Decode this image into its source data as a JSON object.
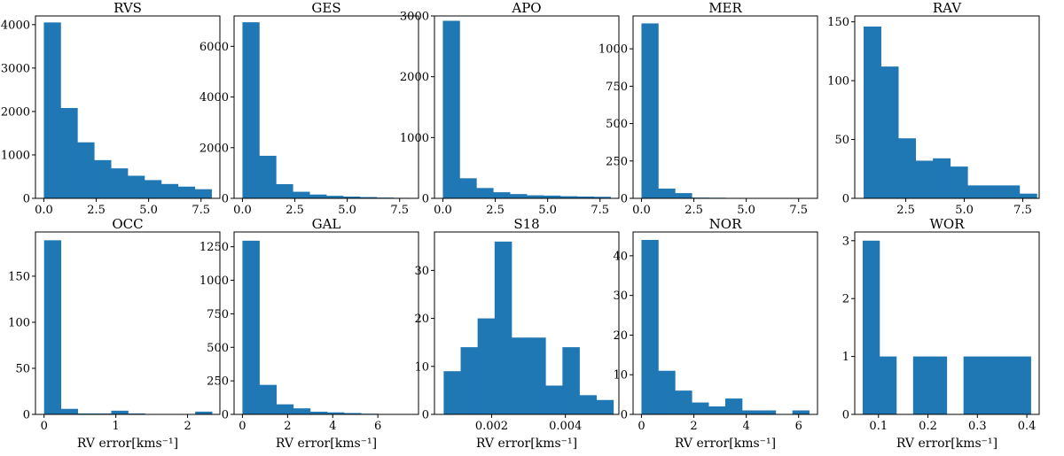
{
  "colors": {
    "bar": "#1f77b4"
  },
  "chart_data": [
    {
      "type": "bar",
      "title": "RVS",
      "xlim": [
        -0.4,
        8.4
      ],
      "ylim": [
        0,
        4200
      ],
      "xticks": [
        0,
        2.5,
        5,
        7.5
      ],
      "xtick_labels": [
        "0.0",
        "2.5",
        "5.0",
        "7.5"
      ],
      "yticks": [
        0,
        1000,
        2000,
        3000,
        4000
      ],
      "ytick_labels": [
        "0",
        "1000",
        "2000",
        "3000",
        "4000"
      ],
      "bin_edges": [
        0,
        0.8,
        1.6,
        2.4,
        3.2,
        4.0,
        4.8,
        5.6,
        6.4,
        7.2,
        8.0
      ],
      "values": [
        4050,
        2080,
        1290,
        880,
        690,
        520,
        420,
        330,
        270,
        210
      ],
      "xlabel": ""
    },
    {
      "type": "bar",
      "title": "GES",
      "xlim": [
        -0.4,
        8.4
      ],
      "ylim": [
        0,
        7200
      ],
      "xticks": [
        0,
        2.5,
        5,
        7.5
      ],
      "xtick_labels": [
        "0.0",
        "2.5",
        "5.0",
        "7.5"
      ],
      "yticks": [
        0,
        2000,
        4000,
        6000
      ],
      "ytick_labels": [
        "0",
        "2000",
        "4000",
        "6000"
      ],
      "bin_edges": [
        0,
        0.8,
        1.6,
        2.4,
        3.2,
        4.0,
        4.8,
        5.6,
        6.4,
        7.2,
        8.0
      ],
      "values": [
        6950,
        1680,
        560,
        260,
        150,
        100,
        70,
        50,
        30,
        20
      ],
      "xlabel": ""
    },
    {
      "type": "bar",
      "title": "APO",
      "xlim": [
        -0.4,
        8.4
      ],
      "ylim": [
        0,
        3000
      ],
      "xticks": [
        0,
        2.5,
        5,
        7.5
      ],
      "xtick_labels": [
        "0.0",
        "2.5",
        "5.0",
        "7.5"
      ],
      "yticks": [
        0,
        1000,
        2000,
        3000
      ],
      "ytick_labels": [
        "0",
        "1000",
        "2000",
        "3000"
      ],
      "bin_edges": [
        0,
        0.8,
        1.6,
        2.4,
        3.2,
        4.0,
        4.8,
        5.6,
        6.4,
        7.2,
        8.0
      ],
      "values": [
        2920,
        330,
        170,
        100,
        70,
        50,
        45,
        35,
        30,
        25
      ],
      "xlabel": ""
    },
    {
      "type": "bar",
      "title": "MER",
      "xlim": [
        -0.4,
        8.4
      ],
      "ylim": [
        0,
        1220
      ],
      "xticks": [
        0,
        2.5,
        5,
        7.5
      ],
      "xtick_labels": [
        "0.0",
        "2.5",
        "5.0",
        "7.5"
      ],
      "yticks": [
        0,
        250,
        500,
        750,
        1000
      ],
      "ytick_labels": [
        "0",
        "250",
        "500",
        "750",
        "1000"
      ],
      "bin_edges": [
        0,
        0.8,
        1.6,
        2.4,
        3.2,
        4.0,
        4.8,
        5.6,
        6.4,
        7.2,
        8.0
      ],
      "values": [
        1170,
        65,
        35,
        5,
        4,
        3,
        2,
        2,
        1,
        2
      ],
      "xlabel": ""
    },
    {
      "type": "bar",
      "title": "RAV",
      "xlim": [
        0.32,
        8.2
      ],
      "ylim": [
        0,
        155
      ],
      "xticks": [
        2.5,
        5,
        7.5
      ],
      "xtick_labels": [
        "2.5",
        "5.0",
        "7.5"
      ],
      "yticks": [
        0,
        50,
        100,
        150
      ],
      "ytick_labels": [
        "0",
        "50",
        "100",
        "150"
      ],
      "bin_edges": [
        0.7,
        1.44,
        2.18,
        2.92,
        3.66,
        4.4,
        5.14,
        5.88,
        6.62,
        7.36,
        8.1
      ],
      "values": [
        146,
        112,
        51,
        32,
        34,
        27,
        11,
        11,
        11,
        4
      ],
      "xlabel": ""
    },
    {
      "type": "bar",
      "title": "OCC",
      "xlim": [
        -0.12,
        2.45
      ],
      "ylim": [
        0,
        198
      ],
      "xticks": [
        0,
        1,
        2
      ],
      "xtick_labels": [
        "0",
        "1",
        "2"
      ],
      "yticks": [
        0,
        50,
        100,
        150
      ],
      "ytick_labels": [
        "0",
        "50",
        "100",
        "150"
      ],
      "bin_edges": [
        0,
        0.234,
        0.468,
        0.702,
        0.936,
        1.17,
        1.404,
        1.638,
        1.872,
        2.106,
        2.34
      ],
      "values": [
        189,
        6,
        1,
        1,
        4,
        1,
        0,
        0,
        0,
        3
      ],
      "xlabel": "RV error[kms⁻¹]"
    },
    {
      "type": "bar",
      "title": "GAL",
      "xlim": [
        -0.37,
        7.8
      ],
      "ylim": [
        0,
        1360
      ],
      "xticks": [
        0,
        2,
        4,
        6
      ],
      "xtick_labels": [
        "0",
        "2",
        "4",
        "6"
      ],
      "yticks": [
        0,
        250,
        500,
        750,
        1000,
        1250
      ],
      "ytick_labels": [
        "0",
        "250",
        "500",
        "750",
        "1000",
        "1250"
      ],
      "bin_edges": [
        0,
        0.75,
        1.5,
        2.25,
        3.0,
        3.75,
        4.5,
        5.25,
        6.0,
        6.75,
        7.5
      ],
      "values": [
        1295,
        220,
        75,
        45,
        20,
        15,
        10,
        5,
        3,
        2
      ],
      "xlabel": "RV error[kms⁻¹]"
    },
    {
      "type": "bar",
      "title": "S18",
      "xlim": [
        0.00045,
        0.00545
      ],
      "ylim": [
        0,
        38
      ],
      "xticks": [
        0.002,
        0.004
      ],
      "xtick_labels": [
        "0.002",
        "0.004"
      ],
      "yticks": [
        0,
        10,
        20,
        30
      ],
      "ytick_labels": [
        "0",
        "10",
        "20",
        "30"
      ],
      "bin_edges": [
        0.0007,
        0.00116,
        0.00162,
        0.00208,
        0.00254,
        0.003,
        0.00346,
        0.00392,
        0.00438,
        0.00484,
        0.0053
      ],
      "values": [
        9,
        14,
        20,
        36,
        16,
        16,
        6,
        14,
        4,
        3
      ],
      "xlabel": "RV error[kms⁻¹]"
    },
    {
      "type": "bar",
      "title": "NOR",
      "xlim": [
        -0.32,
        6.72
      ],
      "ylim": [
        0,
        46
      ],
      "xticks": [
        0,
        2,
        4,
        6
      ],
      "xtick_labels": [
        "0",
        "2",
        "4",
        "6"
      ],
      "yticks": [
        0,
        10,
        20,
        30,
        40
      ],
      "ytick_labels": [
        "0",
        "10",
        "20",
        "30",
        "40"
      ],
      "bin_edges": [
        0,
        0.64,
        1.28,
        1.92,
        2.56,
        3.2,
        3.84,
        4.48,
        5.12,
        5.76,
        6.4
      ],
      "values": [
        44,
        11,
        6,
        3,
        2,
        4,
        1,
        1,
        0,
        1
      ],
      "xlabel": "RV error[kms⁻¹]"
    },
    {
      "type": "bar",
      "title": "WOR",
      "xlim": [
        0.052,
        0.425
      ],
      "ylim": [
        0,
        3.15
      ],
      "xticks": [
        0.1,
        0.2,
        0.3,
        0.4
      ],
      "xtick_labels": [
        "0.1",
        "0.2",
        "0.3",
        "0.4"
      ],
      "yticks": [
        0,
        1,
        2,
        3
      ],
      "ytick_labels": [
        "0",
        "1",
        "2",
        "3"
      ],
      "bin_edges": [
        0.068,
        0.102,
        0.136,
        0.17,
        0.204,
        0.238,
        0.272,
        0.306,
        0.34,
        0.374,
        0.408
      ],
      "values": [
        3,
        1,
        0,
        1,
        1,
        0,
        1,
        1,
        1,
        1
      ],
      "xlabel": "RV error[kms⁻¹]"
    }
  ]
}
